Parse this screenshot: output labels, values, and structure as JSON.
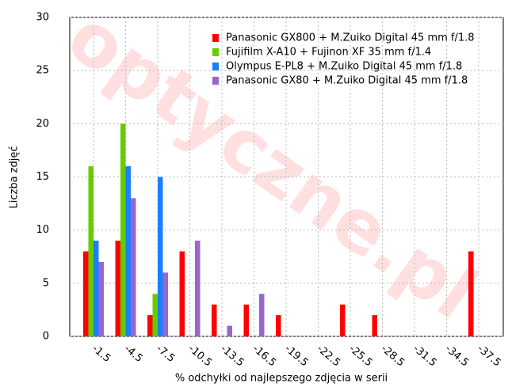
{
  "chart_data": {
    "type": "bar",
    "x_label": "% odchyłki od najlepszego zdjęcia w serii",
    "y_label": "Liczba zdjęć",
    "watermark": "optyczne.pl",
    "categories": [
      "-1.5",
      "-4.5",
      "-7.5",
      "-10.5",
      "-13.5",
      "-16.5",
      "-19.5",
      "-22.5",
      "-25.5",
      "-28.5",
      "-31.5",
      "-34.5",
      "-37.5"
    ],
    "series": [
      {
        "name": "Panasonic GX800 + M.Zuiko Digital 45 mm f/1.8",
        "color": "#ff0000",
        "values": [
          8,
          9,
          2,
          8,
          3,
          3,
          2,
          0,
          3,
          2,
          0,
          0,
          8
        ]
      },
      {
        "name": "Fujifilm X-A10 + Fujinon XF 35 mm f/1.4",
        "color": "#66cc00",
        "values": [
          16,
          20,
          4,
          0,
          0,
          0,
          0,
          0,
          0,
          0,
          0,
          0,
          0
        ]
      },
      {
        "name": "Olympus E-PL8 + M.Zuiko Digital 45 mm f/1.8",
        "color": "#1a80ff",
        "values": [
          9,
          16,
          15,
          0,
          0,
          0,
          0,
          0,
          0,
          0,
          0,
          0,
          0
        ]
      },
      {
        "name": "Panasonic GX80 + M.Zuiko Digital 45 mm f/1.8",
        "color": "#9966cc",
        "values": [
          7,
          13,
          6,
          9,
          1,
          4,
          0,
          0,
          0,
          0,
          0,
          0,
          0
        ]
      }
    ],
    "ylim": [
      0,
      30
    ],
    "yticks": [
      0,
      5,
      10,
      15,
      20,
      25,
      30
    ],
    "grid": true,
    "legend": "top-right"
  }
}
